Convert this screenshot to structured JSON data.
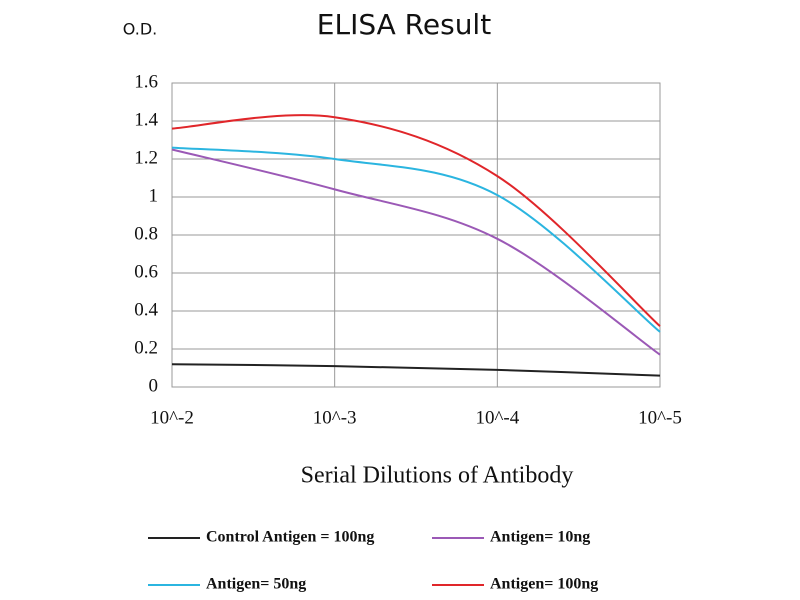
{
  "chart_data": {
    "type": "line",
    "title": "ELISA Result",
    "y_label": "O.D.",
    "x_label": "Serial Dilutions of Antibody",
    "categories": [
      "10^-2",
      "10^-3",
      "10^-4",
      "10^-5"
    ],
    "series": [
      {
        "name": "Control Antigen = 100ng",
        "color": "#222222",
        "values": [
          0.12,
          0.11,
          0.09,
          0.06
        ]
      },
      {
        "name": "Antigen= 10ng",
        "color": "#9b59b6",
        "values": [
          1.25,
          1.04,
          0.78,
          0.17
        ]
      },
      {
        "name": "Antigen= 50ng",
        "color": "#2bb5e0",
        "values": [
          1.26,
          1.2,
          1.01,
          0.29
        ]
      },
      {
        "name": "Antigen= 100ng",
        "color": "#e0262a",
        "values": [
          1.36,
          1.42,
          1.11,
          0.32
        ]
      }
    ],
    "ylim": [
      0,
      1.6
    ],
    "yticks": [
      0,
      0.2,
      0.4,
      0.6,
      0.8,
      1,
      1.2,
      1.4,
      1.6
    ],
    "grid": true
  }
}
